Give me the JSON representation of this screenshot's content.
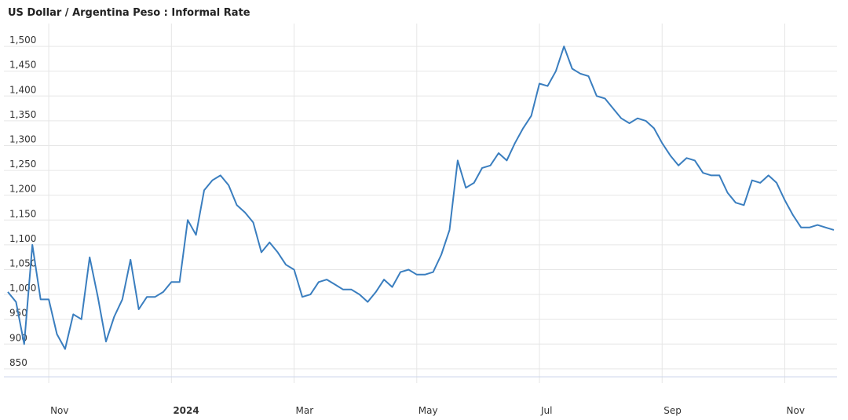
{
  "chart_data": {
    "type": "line",
    "title": "US Dollar / Argentina Peso : Informal Rate",
    "categories": [
      null,
      null,
      null,
      null,
      null,
      "Nov",
      null,
      null,
      null,
      null,
      null,
      null,
      null,
      null,
      null,
      null,
      null,
      null,
      null,
      null,
      "2024",
      null,
      null,
      null,
      null,
      null,
      null,
      null,
      null,
      null,
      null,
      null,
      null,
      null,
      null,
      "Mar",
      null,
      null,
      null,
      null,
      null,
      null,
      null,
      null,
      null,
      null,
      null,
      null,
      null,
      null,
      "May",
      null,
      null,
      null,
      null,
      null,
      null,
      null,
      null,
      null,
      null,
      null,
      null,
      null,
      null,
      "Jul",
      null,
      null,
      null,
      null,
      null,
      null,
      null,
      null,
      null,
      null,
      null,
      null,
      null,
      null,
      "Sep",
      null,
      null,
      null,
      null,
      null,
      null,
      null,
      null,
      null,
      null,
      null,
      null,
      null,
      null,
      "Nov",
      null,
      null,
      null,
      null,
      null,
      null
    ],
    "series": [
      {
        "color": "#3a7ebf",
        "values": [
          1005,
          985,
          900,
          1100,
          990,
          990,
          920,
          890,
          960,
          950,
          1075,
          995,
          905,
          955,
          990,
          1070,
          970,
          995,
          995,
          1005,
          1025,
          1025,
          1150,
          1120,
          1210,
          1230,
          1240,
          1220,
          1180,
          1165,
          1145,
          1085,
          1105,
          1085,
          1060,
          1050,
          995,
          1000,
          1025,
          1030,
          1020,
          1010,
          1010,
          1000,
          985,
          1005,
          1030,
          1015,
          1045,
          1050,
          1040,
          1040,
          1045,
          1080,
          1130,
          1270,
          1215,
          1225,
          1255,
          1260,
          1285,
          1270,
          1305,
          1335,
          1360,
          1425,
          1420,
          1450,
          1500,
          1455,
          1445,
          1440,
          1400,
          1395,
          1375,
          1355,
          1345,
          1355,
          1350,
          1335,
          1305,
          1280,
          1260,
          1275,
          1270,
          1245,
          1240,
          1240,
          1205,
          1185,
          1180,
          1230,
          1225,
          1240,
          1225,
          1190,
          1160,
          1135,
          1135,
          1140,
          1135,
          1130
        ]
      }
    ],
    "ylim": [
      834,
      1546
    ],
    "yticks": [
      850,
      900,
      950,
      {
        "value": 1000,
        "label": "1,000"
      },
      {
        "value": 1050,
        "label": "1,050"
      },
      {
        "value": 1100,
        "label": "1,100"
      },
      {
        "value": 1150,
        "label": "1,150"
      },
      {
        "value": 1200,
        "label": "1,200"
      },
      {
        "value": 1250,
        "label": "1,250"
      },
      {
        "value": 1300,
        "label": "1,300"
      },
      {
        "value": 1350,
        "label": "1,350"
      },
      {
        "value": 1400,
        "label": "1,400"
      },
      {
        "value": 1450,
        "label": "1,450"
      },
      {
        "value": 1500,
        "label": "1,500"
      }
    ],
    "grid": true
  }
}
